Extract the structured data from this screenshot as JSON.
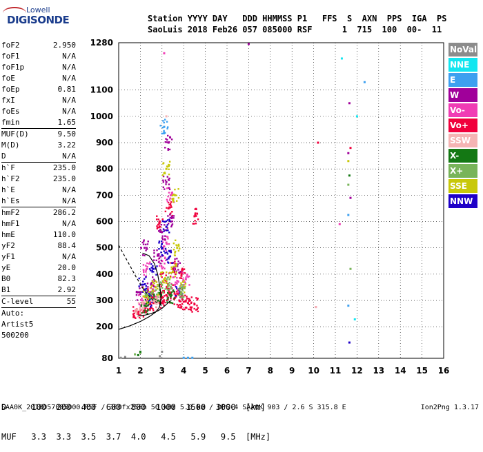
{
  "logo": {
    "line1": "Lowell",
    "line2": "DIGISONDE"
  },
  "header": {
    "line1": "Station YYYY DAY   DDD HHMMSS P1   FFS  S  AXN  PPS  IGA  PS",
    "line2": "SaoLuis 2018 Feb26 057 085000 RSF      1  715  100  00-  11"
  },
  "params": [
    {
      "label": "foF2",
      "value": "2.950"
    },
    {
      "label": "foF1",
      "value": "N/A"
    },
    {
      "label": "foF1p",
      "value": "N/A"
    },
    {
      "label": "foE",
      "value": "N/A"
    },
    {
      "label": "foEp",
      "value": "0.81"
    },
    {
      "label": "fxI",
      "value": "N/A"
    },
    {
      "label": "foEs",
      "value": "N/A"
    },
    {
      "label": "fmin",
      "value": "1.65",
      "sep": true
    },
    {
      "label": "MUF(D)",
      "value": "9.50"
    },
    {
      "label": "M(D)",
      "value": "3.22"
    },
    {
      "label": "D",
      "value": "N/A",
      "sep": true
    },
    {
      "label": "h`F",
      "value": "235.0"
    },
    {
      "label": "h`F2",
      "value": "235.0"
    },
    {
      "label": "h`E",
      "value": "N/A"
    },
    {
      "label": "h`Es",
      "value": "N/A",
      "sep": true
    },
    {
      "label": "hmF2",
      "value": "286.2"
    },
    {
      "label": "hmF1",
      "value": "N/A"
    },
    {
      "label": "hmE",
      "value": "110.0"
    },
    {
      "label": "yF2",
      "value": "88.4"
    },
    {
      "label": "yF1",
      "value": "N/A"
    },
    {
      "label": "yE",
      "value": "20.0"
    },
    {
      "label": "B0",
      "value": "82.3"
    },
    {
      "label": "B1",
      "value": "2.92",
      "sep": true
    },
    {
      "label": "C-level",
      "value": "55",
      "sep": true
    },
    {
      "label": "Auto:",
      "value": "",
      "text": true
    },
    {
      "label": "Artist5",
      "value": "",
      "text": true
    },
    {
      "label": "500200",
      "value": "",
      "text": true
    }
  ],
  "legend": [
    {
      "label": "NoVal",
      "color": "#8c8c8c"
    },
    {
      "label": "NNE",
      "color": "#12e6f0"
    },
    {
      "label": "E",
      "color": "#3ca0f0"
    },
    {
      "label": "W",
      "color": "#a0009a"
    },
    {
      "label": "Vo-",
      "color": "#f03cb4"
    },
    {
      "label": "Vo+",
      "color": "#f0003c"
    },
    {
      "label": "SSW",
      "color": "#f5b4b4"
    },
    {
      "label": "X-",
      "color": "#147814"
    },
    {
      "label": "X+",
      "color": "#78b45a"
    },
    {
      "label": "SSE",
      "color": "#c8c80a"
    },
    {
      "label": "NNW",
      "color": "#1e00c8"
    }
  ],
  "bottom": {
    "d_line": "D     100  200  400  600  800  1000  1500  3000  [km]",
    "muf_line": "MUF   3.3  3.3  3.5  3.7  4.0   4.5   5.9   9.5  [MHz]"
  },
  "footer": "SAA0K_2018057085000.RSF / 300fx256h 50 kHz 5.0 km / DPS-4 SAA0K 903 / 2.6 S 315.8 E",
  "version": "Ion2Png 1.3.17",
  "chart_data": {
    "type": "scatter",
    "title": "",
    "xlabel": "",
    "ylabel": "",
    "xlim": [
      1,
      16
    ],
    "ylim": [
      80,
      1280
    ],
    "xticks": [
      1,
      2,
      3,
      4,
      5,
      6,
      7,
      8,
      9,
      10,
      11,
      12,
      13,
      14,
      15,
      16
    ],
    "yticks": [
      80,
      200,
      300,
      400,
      500,
      600,
      700,
      800,
      900,
      1000,
      1100,
      1280
    ],
    "grid": "dotted",
    "series": [
      {
        "name": "Vo+",
        "color": "#f0003c",
        "points": [
          [
            1.85,
            250
          ],
          [
            2.0,
            265
          ],
          [
            2.2,
            270
          ],
          [
            2.4,
            285
          ],
          [
            2.6,
            290
          ],
          [
            2.8,
            300
          ],
          [
            3.0,
            310
          ],
          [
            3.2,
            320
          ],
          [
            3.4,
            330
          ],
          [
            3.6,
            310
          ],
          [
            3.8,
            300
          ],
          [
            4.0,
            295
          ],
          [
            4.2,
            290
          ],
          [
            4.5,
            285
          ],
          [
            2.5,
            330
          ],
          [
            3.1,
            380
          ],
          [
            3.5,
            420
          ],
          [
            3.9,
            400
          ],
          [
            2.9,
            600
          ],
          [
            3.3,
            650
          ],
          [
            4.5,
            620
          ],
          [
            10.2,
            900
          ],
          [
            11.7,
            880
          ],
          [
            1.7,
            240
          ]
        ]
      },
      {
        "name": "Vo-",
        "color": "#f03cb4",
        "points": [
          [
            2.1,
            300
          ],
          [
            2.6,
            340
          ],
          [
            3.0,
            450
          ],
          [
            3.2,
            520
          ],
          [
            3.6,
            360
          ],
          [
            2.3,
            420
          ],
          [
            3.4,
            700
          ],
          [
            4.1,
            380
          ],
          [
            11.2,
            590
          ],
          [
            10.1,
            275
          ],
          [
            3.1,
            1240
          ]
        ]
      },
      {
        "name": "W",
        "color": "#a0009a",
        "points": [
          [
            2.0,
            330
          ],
          [
            2.5,
            360
          ],
          [
            2.8,
            470
          ],
          [
            3.0,
            560
          ],
          [
            3.2,
            750
          ],
          [
            3.4,
            600
          ],
          [
            3.7,
            430
          ],
          [
            2.2,
            500
          ],
          [
            7.0,
            1275
          ],
          [
            11.65,
            1050
          ],
          [
            11.7,
            690
          ],
          [
            11.6,
            860
          ],
          [
            3.3,
            900
          ]
        ]
      },
      {
        "name": "NNW",
        "color": "#1e00c8",
        "points": [
          [
            2.1,
            360
          ],
          [
            2.6,
            420
          ],
          [
            3.0,
            500
          ],
          [
            3.3,
            460
          ],
          [
            3.8,
            340
          ],
          [
            2.4,
            300
          ],
          [
            11.65,
            140
          ],
          [
            3.2,
            580
          ]
        ]
      },
      {
        "name": "SSE",
        "color": "#c8c80a",
        "points": [
          [
            2.3,
            320
          ],
          [
            2.7,
            350
          ],
          [
            3.1,
            380
          ],
          [
            3.5,
            410
          ],
          [
            3.7,
            500
          ],
          [
            4.0,
            350
          ],
          [
            3.2,
            800
          ],
          [
            3.6,
            700
          ],
          [
            11.6,
            830
          ]
        ]
      },
      {
        "name": "X+",
        "color": "#78b45a",
        "points": [
          [
            2.4,
            310
          ],
          [
            2.9,
            340
          ],
          [
            3.3,
            360
          ],
          [
            3.9,
            330
          ],
          [
            1.75,
            95
          ],
          [
            2.0,
            100
          ],
          [
            11.6,
            740
          ],
          [
            11.7,
            420
          ]
        ]
      },
      {
        "name": "X-",
        "color": "#147814",
        "points": [
          [
            2.2,
            280
          ],
          [
            2.8,
            300
          ],
          [
            3.4,
            315
          ],
          [
            2.0,
            105
          ],
          [
            1.9,
            92
          ],
          [
            11.65,
            775
          ]
        ]
      },
      {
        "name": "SSW",
        "color": "#f5b4b4",
        "points": [
          [
            2.0,
            270
          ],
          [
            2.7,
            290
          ],
          [
            3.2,
            1000
          ],
          [
            10.1,
            275
          ],
          [
            1.9,
            240
          ]
        ]
      },
      {
        "name": "E",
        "color": "#3ca0f0",
        "points": [
          [
            4.0,
            82
          ],
          [
            4.2,
            82
          ],
          [
            4.4,
            82
          ],
          [
            12.35,
            1130
          ],
          [
            3.1,
            960
          ],
          [
            11.6,
            625
          ],
          [
            11.6,
            280
          ]
        ]
      },
      {
        "name": "NNE",
        "color": "#12e6f0",
        "points": [
          [
            11.3,
            1220
          ],
          [
            12.0,
            1000
          ],
          [
            11.9,
            228
          ]
        ]
      },
      {
        "name": "NoVal",
        "color": "#8c8c8c",
        "points": [
          [
            1.1,
            82
          ],
          [
            1.3,
            85
          ],
          [
            3.0,
            105
          ],
          [
            2.9,
            88
          ]
        ]
      }
    ],
    "traces": [
      {
        "name": "profile",
        "points": [
          [
            1.0,
            190
          ],
          [
            1.5,
            203
          ],
          [
            2.0,
            220
          ],
          [
            2.4,
            238
          ],
          [
            2.7,
            255
          ],
          [
            2.85,
            270
          ],
          [
            2.92,
            285
          ],
          [
            2.95,
            300
          ],
          [
            2.95,
            320
          ],
          [
            2.9,
            350
          ],
          [
            2.8,
            400
          ],
          [
            2.65,
            440
          ],
          [
            2.4,
            470
          ],
          [
            2.1,
            480
          ]
        ]
      },
      {
        "name": "o-trace",
        "points": [
          [
            1.9,
            242
          ],
          [
            2.2,
            244
          ],
          [
            2.5,
            250
          ],
          [
            2.8,
            260
          ],
          [
            3.0,
            270
          ],
          [
            3.2,
            285
          ],
          [
            3.4,
            300
          ]
        ]
      },
      {
        "name": "dashed",
        "points": [
          [
            1.0,
            510
          ],
          [
            1.4,
            450
          ],
          [
            1.8,
            390
          ],
          [
            2.2,
            335
          ],
          [
            2.6,
            300
          ],
          [
            3.0,
            280
          ]
        ]
      }
    ]
  }
}
